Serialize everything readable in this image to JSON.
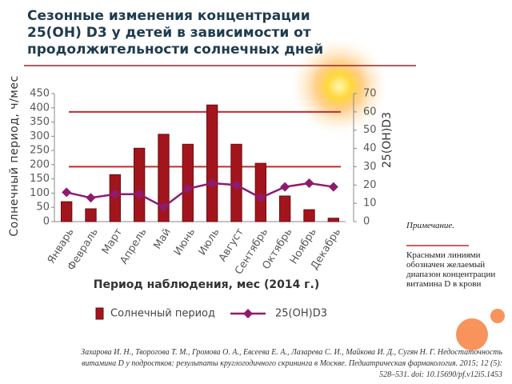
{
  "chart_data": {
    "type": "bar",
    "title": "Сезонные изменения концентрации 25(OH) D3 у детей в зависимости от продолжительности солнечных дней",
    "categories": [
      "Январь",
      "Февраль",
      "Март",
      "Апрель",
      "Май",
      "Июнь",
      "Июль",
      "Август",
      "Сентябрь",
      "Октябрь",
      "Ноябрь",
      "Декабрь"
    ],
    "series": [
      {
        "name": "Солнечный период",
        "type": "bar",
        "color": "#a3151d",
        "values": [
          70,
          45,
          165,
          258,
          307,
          272,
          410,
          272,
          205,
          90,
          42,
          12
        ]
      },
      {
        "name": "25(OH)D3",
        "type": "line",
        "axis": "y2",
        "color": "#8e1b6f",
        "values": [
          16,
          13,
          15,
          15,
          8,
          18,
          21,
          20,
          13,
          19,
          21,
          19
        ]
      }
    ],
    "ylim": [
      0,
      450
    ],
    "yticks": [
      0,
      50,
      100,
      150,
      200,
      250,
      300,
      350,
      400,
      450
    ],
    "y2lim": [
      0,
      70
    ],
    "y2ticks": [
      0,
      10,
      20,
      30,
      40,
      50,
      60,
      70
    ],
    "ylabel": "Солнечный период, ч/мес",
    "y2label": "25(OH)D3",
    "xlabel": "Период наблюдения, мес (2014 г.)",
    "reference_lines": {
      "axis": "y2",
      "color": "#c8282d",
      "values": [
        30,
        60
      ]
    },
    "legend": "bottom"
  },
  "note": {
    "title": "Примечание.",
    "text": "Красными линиями обозначен желаемый диапазон концентрации витамина D в крови"
  },
  "citation": "Захарова И. Н., Творогова Т. М., Громова О. А., Евсеева Е. А., Лазарева С. И., Майкова И. Д., Сугян Н. Г. Недостаточность витамина D у подростков: результаты круглогодичного скрининга в Москве. Педиатрическая фармакология. 2015; 12 (5): 528–531. doi: 10.15690/pf.v12i5.1453"
}
